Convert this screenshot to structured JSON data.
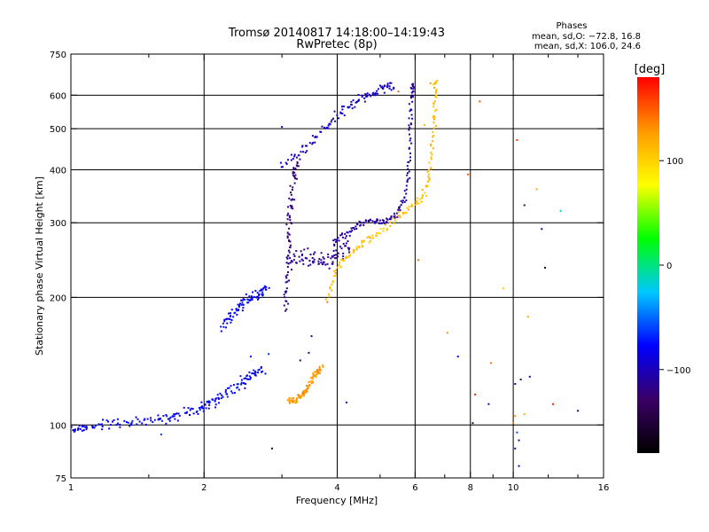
{
  "chart_data": {
    "type": "scatter",
    "title": "Tromsø 20140817 14:18:00–14:19:43",
    "subtitle": "RwPretec (8p)",
    "xlabel": "Frequency [MHz]",
    "ylabel": "Stationary phase Virtual Height [km]",
    "xscale": "log",
    "yscale": "log",
    "xlim": [
      1,
      16
    ],
    "ylim": [
      75,
      750
    ],
    "x_ticks": [
      1,
      2,
      4,
      6,
      8,
      10,
      16
    ],
    "x_tick_labels": [
      "1",
      "2",
      "4",
      "6",
      "8",
      "10",
      "16"
    ],
    "x_minor_ticks": [
      1.5,
      3,
      5,
      7,
      9,
      12,
      14
    ],
    "x_gridlines": [
      2,
      4,
      6,
      8,
      10
    ],
    "y_ticks": [
      75,
      100,
      200,
      300,
      400,
      500,
      600,
      750
    ],
    "y_tick_labels": [
      "75",
      "100",
      "200",
      "300",
      "400",
      "500",
      "600",
      "750"
    ],
    "y_gridlines": [
      100,
      200,
      300,
      400,
      500,
      600
    ],
    "grid": true,
    "phase_info": {
      "title": "Phases",
      "line_o": "mean, sd,O: −72.8, 16.8",
      "line_x": "mean, sd,X: 106.0, 24.6"
    },
    "colorbar": {
      "label": "[deg]",
      "range": [
        -180,
        180
      ],
      "ticks": [
        100,
        0,
        -100
      ],
      "tick_labels": [
        "100",
        "0",
        "−100"
      ],
      "colormap": "rainbow",
      "colors": [
        "#000000",
        "#3a0066",
        "#0000ff",
        "#00c8ff",
        "#00ff00",
        "#ffff00",
        "#ff9900",
        "#ff0000"
      ]
    },
    "traces": [
      {
        "id": "e-layer",
        "phase": -80,
        "phase_spread": 18,
        "points": [
          [
            1.0,
            97
          ],
          [
            1.05,
            98
          ],
          [
            1.15,
            100
          ],
          [
            1.3,
            101
          ],
          [
            1.45,
            102
          ],
          [
            1.6,
            103
          ],
          [
            1.75,
            105
          ],
          [
            1.9,
            108
          ],
          [
            2.0,
            110
          ],
          [
            2.1,
            113
          ],
          [
            2.2,
            117
          ],
          [
            2.35,
            122
          ],
          [
            2.5,
            128
          ],
          [
            2.6,
            132
          ],
          [
            2.75,
            136
          ]
        ],
        "jitter_x": 0.05,
        "jitter_y": 0.035
      },
      {
        "id": "low-f-layer",
        "phase": -80,
        "phase_spread": 15,
        "points": [
          [
            2.2,
            170
          ],
          [
            2.3,
            178
          ],
          [
            2.4,
            188
          ],
          [
            2.5,
            195
          ],
          [
            2.6,
            200
          ],
          [
            2.7,
            205
          ],
          [
            2.75,
            210
          ]
        ],
        "jitter_x": 0.03,
        "jitter_y": 0.04
      },
      {
        "id": "f-o-column",
        "phase": -120,
        "phase_spread": 12,
        "points": [
          [
            3.05,
            185
          ],
          [
            3.08,
            220
          ],
          [
            3.1,
            260
          ],
          [
            3.12,
            300
          ],
          [
            3.15,
            340
          ],
          [
            3.2,
            390
          ],
          [
            3.25,
            420
          ]
        ],
        "jitter_x": 0.025,
        "jitter_y": 0.04
      },
      {
        "id": "f-o-cluster",
        "phase": -115,
        "phase_spread": 12,
        "points": [
          [
            3.1,
            240
          ],
          [
            3.3,
            250
          ],
          [
            3.5,
            245
          ],
          [
            3.7,
            240
          ],
          [
            3.9,
            250
          ],
          [
            4.1,
            260
          ],
          [
            4.3,
            270
          ]
        ],
        "jitter_x": 0.03,
        "jitter_y": 0.07
      },
      {
        "id": "f-o-main",
        "phase": -110,
        "phase_spread": 12,
        "points": [
          [
            3.9,
            270
          ],
          [
            4.2,
            285
          ],
          [
            4.5,
            300
          ],
          [
            4.8,
            305
          ],
          [
            5.1,
            300
          ],
          [
            5.4,
            310
          ],
          [
            5.7,
            340
          ],
          [
            5.8,
            400
          ],
          [
            5.85,
            500
          ],
          [
            5.9,
            600
          ],
          [
            5.92,
            640
          ]
        ],
        "jitter_x": 0.015,
        "jitter_y": 0.025
      },
      {
        "id": "f-upper-branch",
        "phase": -95,
        "phase_spread": 14,
        "points": [
          [
            3.0,
            410
          ],
          [
            3.3,
            440
          ],
          [
            3.6,
            480
          ],
          [
            3.9,
            520
          ],
          [
            4.2,
            560
          ],
          [
            4.5,
            590
          ],
          [
            4.8,
            605
          ],
          [
            5.1,
            620
          ],
          [
            5.4,
            640
          ]
        ],
        "jitter_x": 0.025,
        "jitter_y": 0.035
      },
      {
        "id": "f-x-main",
        "phase": 110,
        "phase_spread": 25,
        "points": [
          [
            3.8,
            200
          ],
          [
            4.0,
            235
          ],
          [
            4.3,
            255
          ],
          [
            4.6,
            270
          ],
          [
            5.0,
            285
          ],
          [
            5.5,
            310
          ],
          [
            6.0,
            330
          ],
          [
            6.3,
            350
          ],
          [
            6.5,
            400
          ],
          [
            6.6,
            500
          ],
          [
            6.65,
            600
          ],
          [
            6.7,
            650
          ]
        ],
        "jitter_x": 0.018,
        "jitter_y": 0.025
      },
      {
        "id": "e-x-trace",
        "phase": 130,
        "phase_spread": 15,
        "points": [
          [
            3.1,
            113
          ],
          [
            3.2,
            114
          ],
          [
            3.3,
            116
          ],
          [
            3.4,
            120
          ],
          [
            3.5,
            126
          ],
          [
            3.6,
            133
          ],
          [
            3.7,
            138
          ]
        ],
        "jitter_x": 0.02,
        "jitter_y": 0.025
      }
    ],
    "scattered_points": [
      {
        "x": 8.4,
        "y": 580,
        "phase": 150
      },
      {
        "x": 10.2,
        "y": 470,
        "phase": 160
      },
      {
        "x": 11.3,
        "y": 360,
        "phase": 120
      },
      {
        "x": 10.6,
        "y": 330,
        "phase": -130
      },
      {
        "x": 12.8,
        "y": 320,
        "phase": -20
      },
      {
        "x": 11.6,
        "y": 290,
        "phase": -100
      },
      {
        "x": 11.8,
        "y": 235,
        "phase": -140
      },
      {
        "x": 7.9,
        "y": 390,
        "phase": 150
      },
      {
        "x": 9.5,
        "y": 210,
        "phase": 100
      },
      {
        "x": 10.8,
        "y": 180,
        "phase": 120
      },
      {
        "x": 7.1,
        "y": 165,
        "phase": 130
      },
      {
        "x": 7.5,
        "y": 145,
        "phase": -100
      },
      {
        "x": 8.9,
        "y": 140,
        "phase": 140
      },
      {
        "x": 10.1,
        "y": 125,
        "phase": -110
      },
      {
        "x": 10.4,
        "y": 128,
        "phase": -120
      },
      {
        "x": 10.9,
        "y": 130,
        "phase": -110
      },
      {
        "x": 8.2,
        "y": 118,
        "phase": 170
      },
      {
        "x": 8.8,
        "y": 112,
        "phase": -100
      },
      {
        "x": 10.6,
        "y": 106,
        "phase": 120
      },
      {
        "x": 10.1,
        "y": 105,
        "phase": 130
      },
      {
        "x": 12.3,
        "y": 112,
        "phase": 170
      },
      {
        "x": 14.0,
        "y": 108,
        "phase": -110
      },
      {
        "x": 8.1,
        "y": 101,
        "phase": -140
      },
      {
        "x": 10.0,
        "y": 101,
        "phase": 140
      },
      {
        "x": 10.2,
        "y": 96,
        "phase": -60
      },
      {
        "x": 10.3,
        "y": 92,
        "phase": -120
      },
      {
        "x": 10.1,
        "y": 88,
        "phase": -110
      },
      {
        "x": 10.3,
        "y": 80,
        "phase": -90
      },
      {
        "x": 2.85,
        "y": 88,
        "phase": -150
      },
      {
        "x": 4.2,
        "y": 113,
        "phase": -100
      },
      {
        "x": 1.6,
        "y": 95,
        "phase": -60
      },
      {
        "x": 3.5,
        "y": 162,
        "phase": -120
      },
      {
        "x": 3.45,
        "y": 148,
        "phase": -110
      },
      {
        "x": 3.3,
        "y": 142,
        "phase": -130
      },
      {
        "x": 2.55,
        "y": 145,
        "phase": -80
      },
      {
        "x": 2.8,
        "y": 147,
        "phase": -70
      },
      {
        "x": 6.1,
        "y": 245,
        "phase": 140
      },
      {
        "x": 6.5,
        "y": 640,
        "phase": 130
      },
      {
        "x": 6.3,
        "y": 510,
        "phase": 110
      },
      {
        "x": 5.5,
        "y": 612,
        "phase": 150
      },
      {
        "x": 3.0,
        "y": 505,
        "phase": -110
      },
      {
        "x": 3.8,
        "y": 195,
        "phase": 140
      }
    ]
  }
}
